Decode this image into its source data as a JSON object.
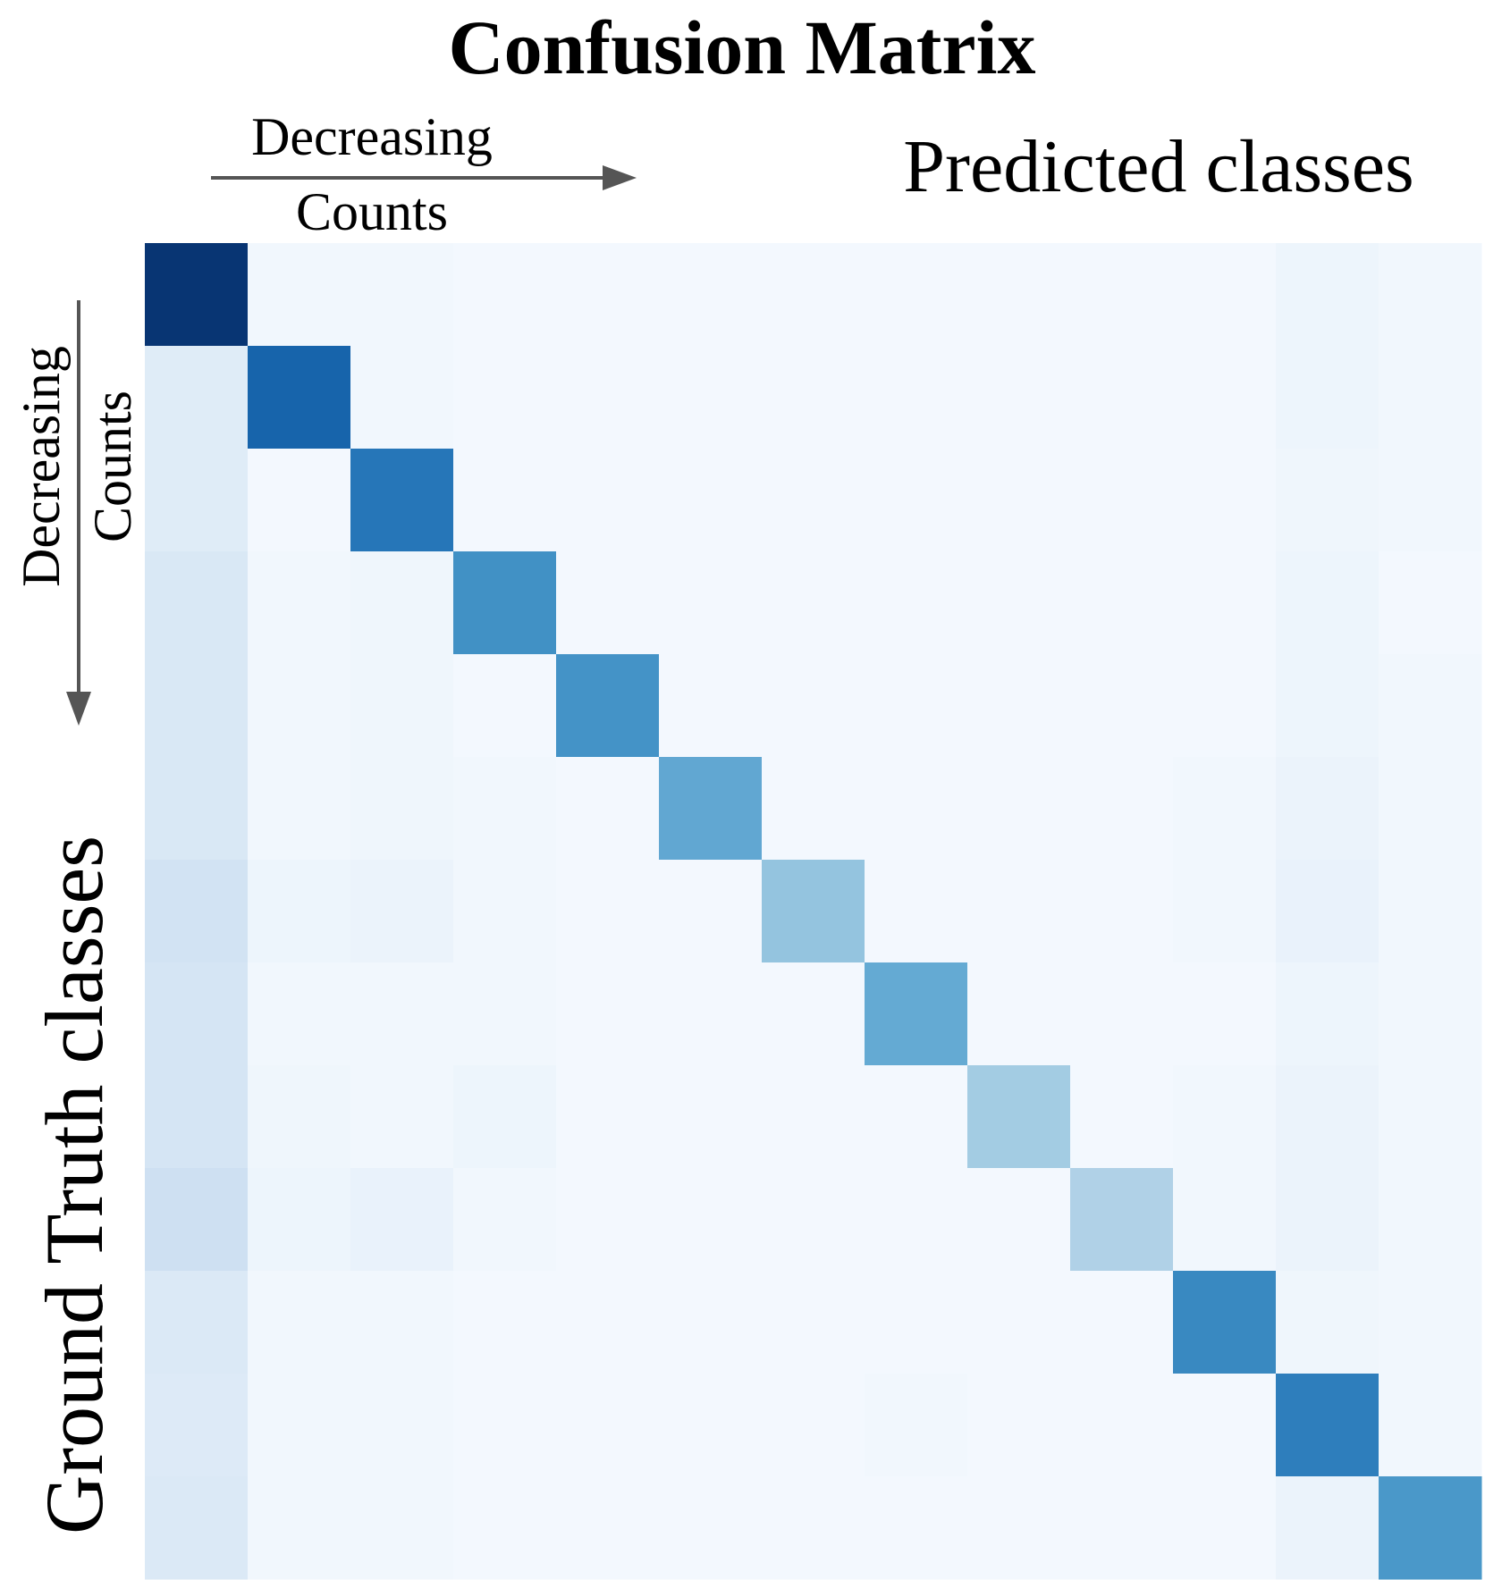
{
  "chart_data": {
    "type": "heatmap",
    "title": "Confusion Matrix",
    "xlabel": "Predicted classes",
    "ylabel": "Ground Truth classes",
    "x_annotation": {
      "line1": "Decreasing",
      "line2": "Counts"
    },
    "y_annotation": {
      "line1": "Decreasing",
      "line2": "Counts"
    },
    "n_classes": 13,
    "colormap": "Blues",
    "value_range": [
      0,
      1
    ],
    "cell_color_low": "#f7fbff",
    "cell_color_high": "#08306b",
    "arrow_color": "#555555",
    "matrix": [
      [
        0.98,
        0.03,
        0.03,
        0.02,
        0.02,
        0.02,
        0.02,
        0.02,
        0.02,
        0.02,
        0.02,
        0.05,
        0.03
      ],
      [
        0.12,
        0.8,
        0.03,
        0.02,
        0.02,
        0.02,
        0.02,
        0.02,
        0.02,
        0.02,
        0.02,
        0.05,
        0.03
      ],
      [
        0.12,
        0.02,
        0.73,
        0.02,
        0.02,
        0.02,
        0.02,
        0.02,
        0.02,
        0.02,
        0.02,
        0.04,
        0.03
      ],
      [
        0.15,
        0.03,
        0.04,
        0.63,
        0.02,
        0.02,
        0.02,
        0.02,
        0.02,
        0.02,
        0.02,
        0.05,
        0.02
      ],
      [
        0.15,
        0.03,
        0.04,
        0.02,
        0.62,
        0.02,
        0.02,
        0.02,
        0.02,
        0.02,
        0.02,
        0.05,
        0.03
      ],
      [
        0.15,
        0.03,
        0.04,
        0.03,
        0.02,
        0.53,
        0.02,
        0.02,
        0.02,
        0.02,
        0.03,
        0.06,
        0.03
      ],
      [
        0.19,
        0.05,
        0.06,
        0.03,
        0.02,
        0.02,
        0.4,
        0.02,
        0.02,
        0.02,
        0.03,
        0.07,
        0.03
      ],
      [
        0.17,
        0.03,
        0.03,
        0.03,
        0.02,
        0.02,
        0.02,
        0.52,
        0.02,
        0.02,
        0.02,
        0.05,
        0.03
      ],
      [
        0.17,
        0.04,
        0.03,
        0.05,
        0.02,
        0.02,
        0.02,
        0.02,
        0.36,
        0.02,
        0.03,
        0.06,
        0.03
      ],
      [
        0.21,
        0.05,
        0.07,
        0.03,
        0.02,
        0.02,
        0.02,
        0.02,
        0.02,
        0.32,
        0.03,
        0.06,
        0.03
      ],
      [
        0.14,
        0.03,
        0.03,
        0.02,
        0.02,
        0.02,
        0.02,
        0.02,
        0.02,
        0.02,
        0.66,
        0.04,
        0.03
      ],
      [
        0.13,
        0.03,
        0.03,
        0.02,
        0.02,
        0.02,
        0.02,
        0.03,
        0.02,
        0.02,
        0.02,
        0.7,
        0.03
      ],
      [
        0.14,
        0.03,
        0.03,
        0.02,
        0.02,
        0.02,
        0.02,
        0.02,
        0.02,
        0.02,
        0.02,
        0.06,
        0.6
      ]
    ]
  }
}
